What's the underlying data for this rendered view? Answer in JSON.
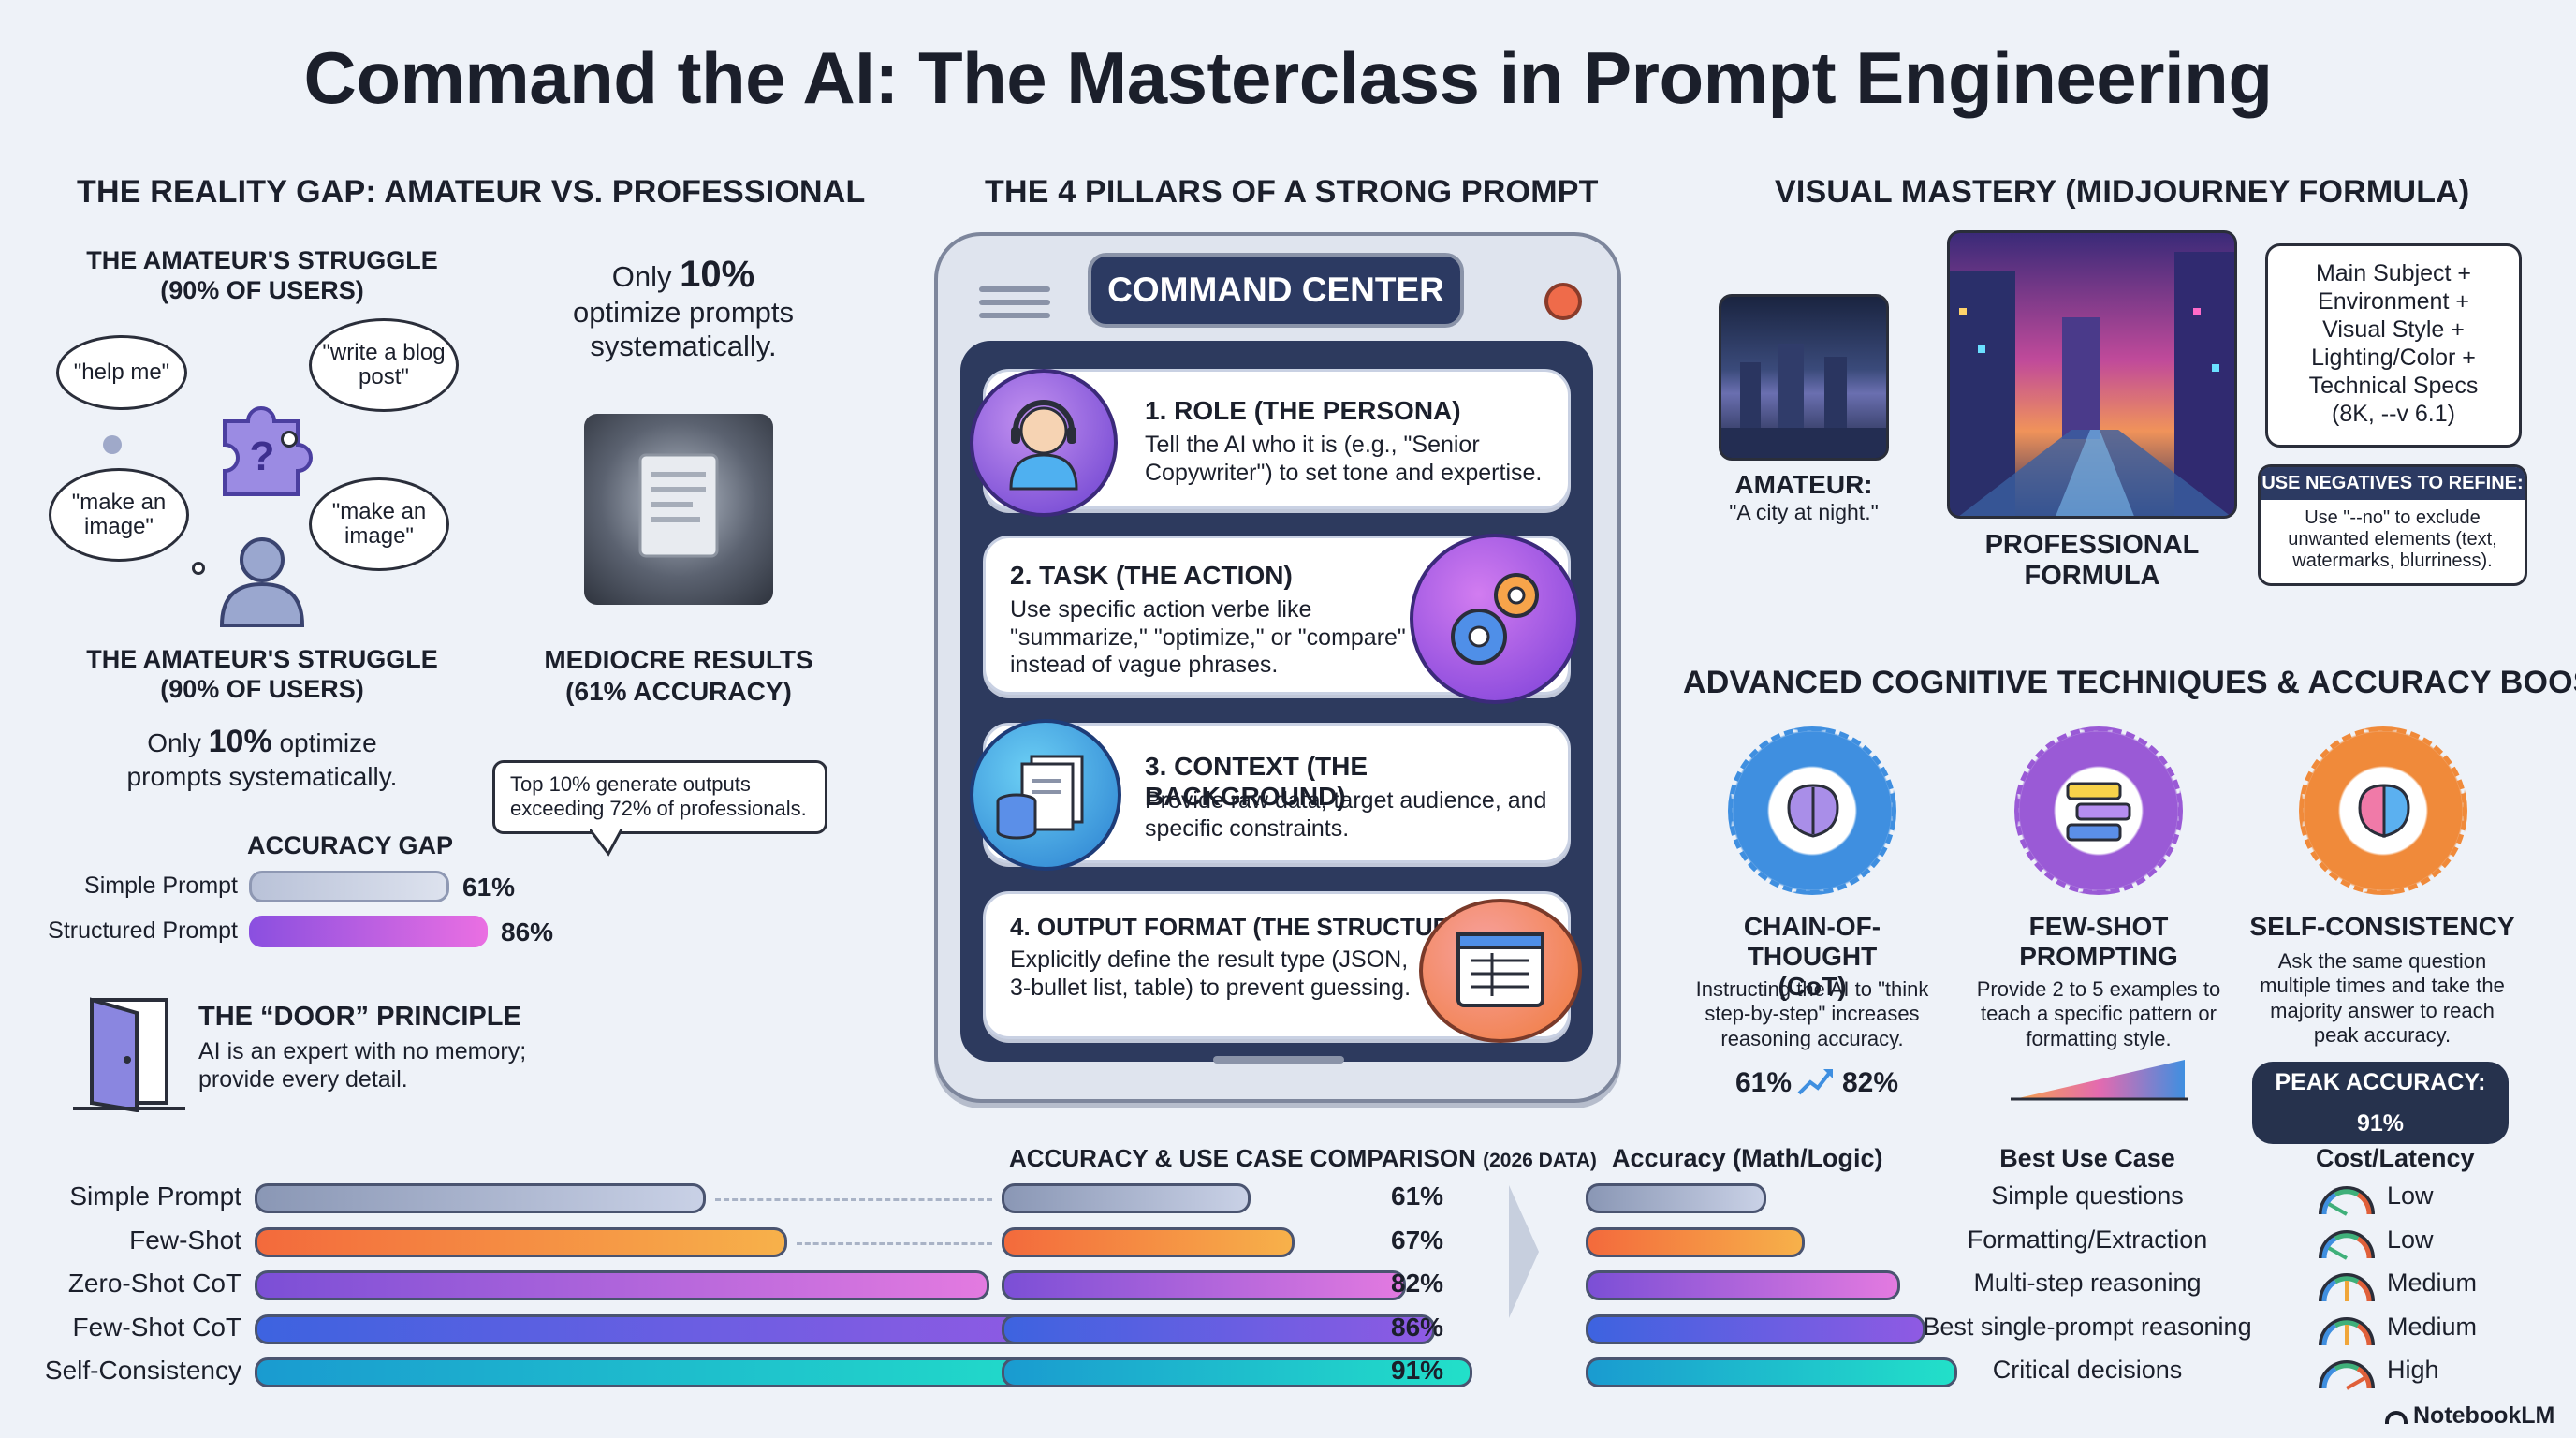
{
  "title": "Command the AI: The Masterclass in Prompt Engineering",
  "reality_gap": {
    "heading": "THE REALITY GAP: AMATEUR VS. PROFESSIONAL",
    "struggle_title_top": "THE AMATEUR'S STRUGGLE\n(90% OF USERS)",
    "bubbles": [
      "\"help me\"",
      "\"write a blog post\"",
      "\"make an image\"",
      "\"make an image\""
    ],
    "only_top_prefix": "Only ",
    "only_top_pct": "10%",
    "only_top_suffix": "optimize prompts systematically.",
    "struggle_title_bottom": "THE AMATEUR'S STRUGGLE\n(90% OF USERS)",
    "only_bottom_prefix": "Only ",
    "only_bottom_pct": "10%",
    "only_bottom_mid": " optimize",
    "only_bottom_suffix": "prompts systematically.",
    "mediocre": "MEDIOCRE RESULTS\n(61% ACCURACY)",
    "callout": "Top 10% generate outputs\nexceeding 72% of professionals.",
    "accuracy_gap_title": "ACCURACY GAP",
    "gap_bars": [
      {
        "label": "Simple Prompt",
        "value": 61,
        "display": "61%"
      },
      {
        "label": "Structured Prompt",
        "value": 86,
        "display": "86%"
      }
    ],
    "door_title": "THE “DOOR” PRINCIPLE",
    "door_text": "AI is an expert with no memory;\nprovide every detail."
  },
  "pillars": {
    "heading": "THE 4 PILLARS OF A STRONG PROMPT",
    "panel_title": "COMMAND CENTER",
    "items": [
      {
        "title": "1. ROLE (THE PERSONA)",
        "body": "Tell the AI who it is (e.g., \"Senior Copywriter\") to set tone and expertise.",
        "icon": "headset-person-icon"
      },
      {
        "title": "2. TASK (THE ACTION)",
        "body": "Use specific action verbe like \"summarize,\" \"optimize,\" or \"compare\" instead of vague phrases.",
        "icon": "gears-icon"
      },
      {
        "title": "3. CONTEXT (THE BACKGROUND)",
        "body": "Provide raw data, target audience, and specific constraints.",
        "icon": "documents-database-icon"
      },
      {
        "title": "4. OUTPUT FORMAT (THE STRUCTURE)",
        "body": "Explicitly define the result type (JSON, 3-bullet list, table) to prevent guessing.",
        "icon": "table-window-icon"
      }
    ]
  },
  "visual": {
    "heading": "VISUAL MASTERY (MIDJOURNEY FORMULA)",
    "amateur_label": "AMATEUR:",
    "amateur_prompt": "\"A city at night.\"",
    "pro_label": "PROFESSIONAL\nFORMULA",
    "formula": "Main Subject +\nEnvironment +\nVisual Style +\nLighting/Color +\nTechnical Specs\n(8K, --v 6.1)",
    "negatives_title": "USE NEGATIVES TO REFINE:",
    "negatives_body": "Use \"--no\" to exclude\nunwanted elements (text,\nwatermarks, blurriness)."
  },
  "advanced": {
    "heading": "ADVANCED COGNITIVE TECHNIQUES & ACCURACY BOOST",
    "techniques": [
      {
        "title": "CHAIN-OF-THOUGHT\n(CoT)",
        "body": "Instructing the AI to \"think step-by-step\" increases reasoning accuracy.",
        "icon": "brain-gear-icon",
        "color": "#3f8fe0"
      },
      {
        "title": "FEW-SHOT\nPROMPTING",
        "body": "Provide 2 to 5 examples to teach a specific pattern or formatting style.",
        "icon": "chat-cards-gear-icon",
        "color": "#9a5ad6"
      },
      {
        "title": "SELF-CONSISTENCY",
        "body": "Ask the same question multiple times and take the majority answer to reach peak accuracy.",
        "icon": "brain-colorful-gear-icon",
        "color": "#f08a3a"
      }
    ],
    "cot_from": "61%",
    "cot_to": "82%",
    "peak": "PEAK ACCURACY: 91%"
  },
  "comparison": {
    "heading_main": "ACCURACY & USE CASE COMPARISON",
    "heading_small": "(2026 DATA)",
    "col_accuracy": "Accuracy (Math/Logic)",
    "col_use": "Best Use Case",
    "col_cost": "Cost/Latency",
    "rows": [
      {
        "label": "Simple Prompt",
        "value": 61,
        "display": "61%",
        "use": "Simple questions",
        "cost": "Low",
        "color_a": "#8a97b5",
        "color_b": "#c9d1e6"
      },
      {
        "label": "Few-Shot",
        "value": 67,
        "display": "67%",
        "use": "Formatting/Extraction",
        "cost": "Low",
        "color_a": "#f36a3c",
        "color_b": "#f7b14a"
      },
      {
        "label": "Zero-Shot CoT",
        "value": 82,
        "display": "82%",
        "use": "Multi-step reasoning",
        "cost": "Medium",
        "color_a": "#7b4fd6",
        "color_b": "#e37ae0"
      },
      {
        "label": "Few-Shot CoT",
        "value": 86,
        "display": "86%",
        "use": "Best single-prompt reasoning",
        "cost": "Medium",
        "color_a": "#3d63e0",
        "color_b": "#8f5ae3"
      },
      {
        "label": "Self-Consistency",
        "value": 91,
        "display": "91%",
        "use": "Critical decisions",
        "cost": "High",
        "color_a": "#1a9bd0",
        "color_b": "#22e0c9"
      }
    ]
  },
  "brand": "NotebookLM"
}
